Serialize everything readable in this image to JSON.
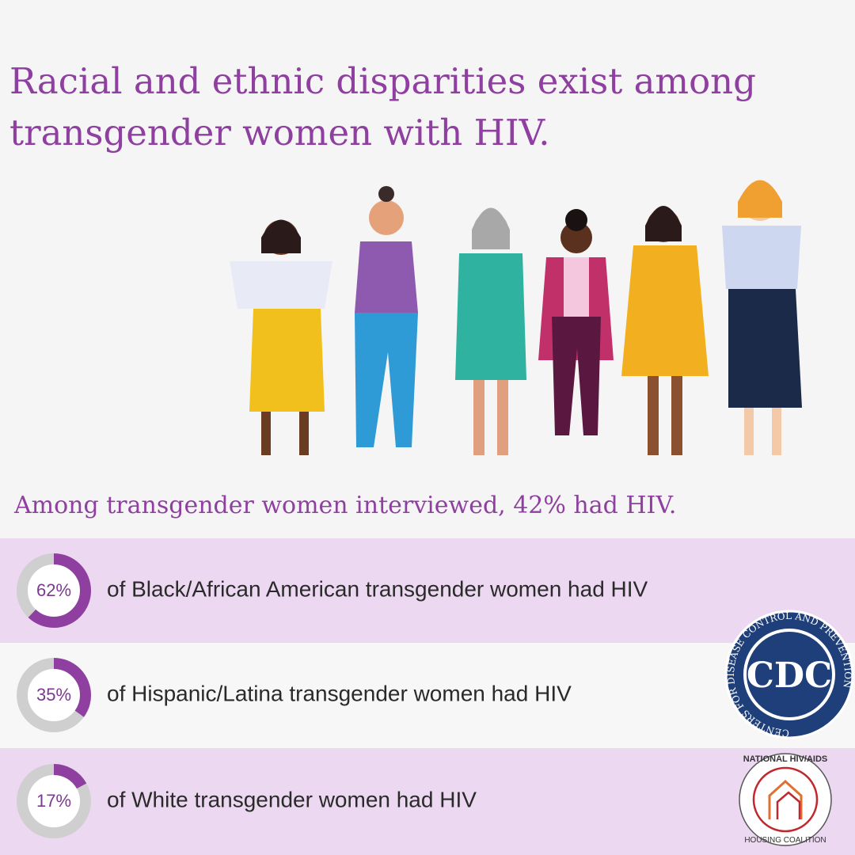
{
  "title": [
    "Racial and ethnic disparities exist among",
    "transgender women with HIV."
  ],
  "subtitle": "Among transgender women interviewed, 42% had HIV.",
  "chart_data": [
    {
      "type": "donut",
      "values": [
        62
      ],
      "value_labels": [
        "62%"
      ],
      "ylim": [
        0,
        100
      ],
      "caption": "of Black/African American transgender women had HIV",
      "color": "#8e3fa0",
      "track_color": "#cfcfcf"
    },
    {
      "type": "donut",
      "values": [
        35
      ],
      "value_labels": [
        "35%"
      ],
      "ylim": [
        0,
        100
      ],
      "caption": "of Hispanic/Latina transgender women had HIV",
      "color": "#8e3fa0",
      "track_color": "#cfcfcf"
    },
    {
      "type": "donut",
      "values": [
        17
      ],
      "value_labels": [
        "17%"
      ],
      "ylim": [
        0,
        100
      ],
      "caption": "of White transgender women had HIV",
      "color": "#8e3fa0",
      "track_color": "#cfcfcf"
    }
  ],
  "logos": {
    "cdc_ring": "CENTERS FOR DISEASE CONTROL AND PREVENTION",
    "cdc": "CDC",
    "coalition_top": "NATIONAL HIV/AIDS",
    "coalition_bottom": "HOUSING COALITION"
  }
}
